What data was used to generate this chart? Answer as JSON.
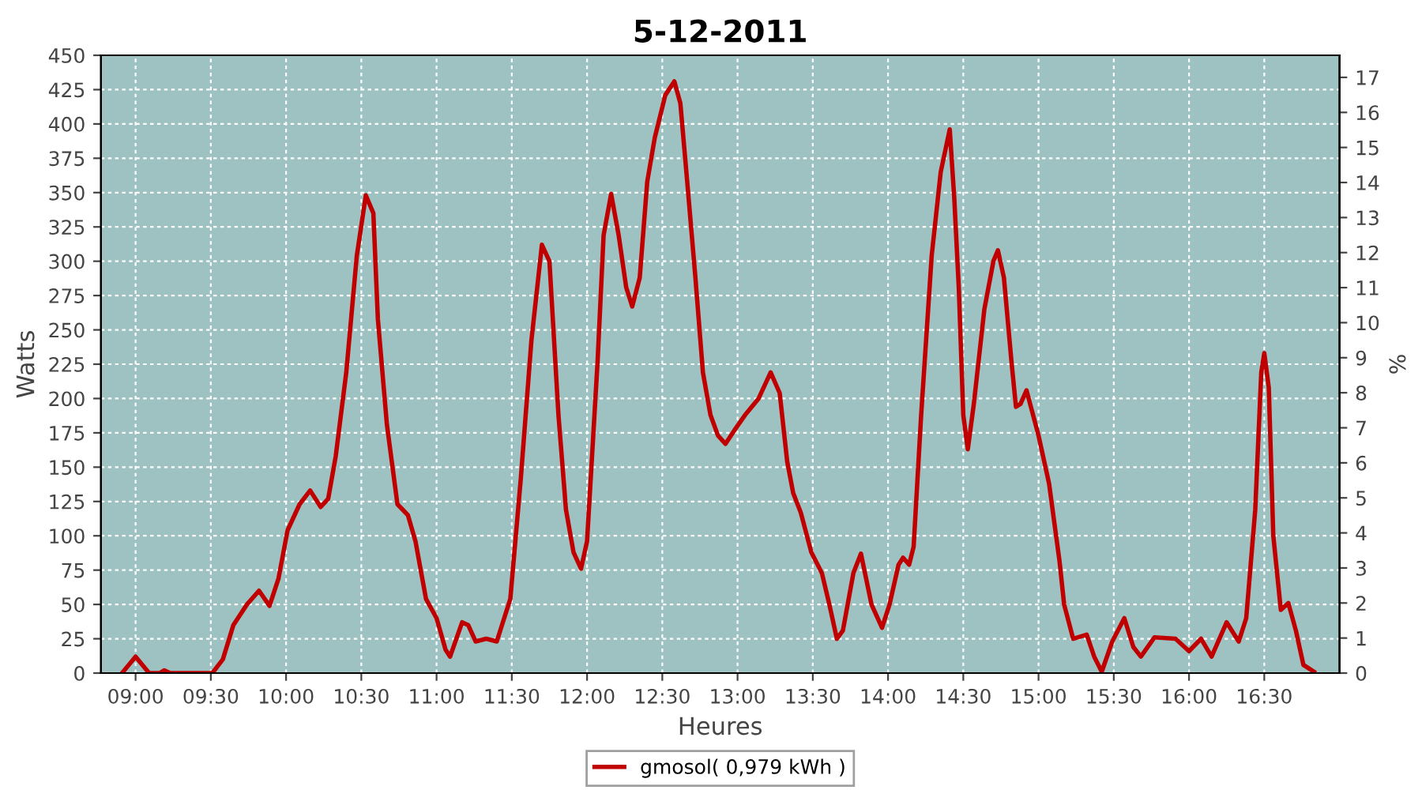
{
  "chart_data": {
    "type": "line",
    "title": "5-12-2011",
    "xlabel": "Heures",
    "ylabel": "Watts",
    "y2label": "%",
    "xlim": [
      8.77,
      17.0
    ],
    "ylim": [
      0,
      450
    ],
    "y2lim": [
      0,
      17.63
    ],
    "xticks": [
      {
        "value": 9,
        "label": "09:00"
      },
      {
        "value": 9.5,
        "label": "09:30"
      },
      {
        "value": 10,
        "label": "10:00"
      },
      {
        "value": 10.5,
        "label": "10:30"
      },
      {
        "value": 11,
        "label": "11:00"
      },
      {
        "value": 11.5,
        "label": "11:30"
      },
      {
        "value": 12,
        "label": "12:00"
      },
      {
        "value": 12.5,
        "label": "12:30"
      },
      {
        "value": 13,
        "label": "13:00"
      },
      {
        "value": 13.5,
        "label": "13:30"
      },
      {
        "value": 14,
        "label": "14:00"
      },
      {
        "value": 14.5,
        "label": "14:30"
      },
      {
        "value": 15,
        "label": "15:00"
      },
      {
        "value": 15.5,
        "label": "15:30"
      },
      {
        "value": 16,
        "label": "16:00"
      },
      {
        "value": 16.5,
        "label": "16:30"
      }
    ],
    "yticks": [
      0,
      25,
      50,
      75,
      100,
      125,
      150,
      175,
      200,
      225,
      250,
      275,
      300,
      325,
      350,
      375,
      400,
      425,
      450
    ],
    "y2ticks": [
      0,
      1,
      2,
      3,
      4,
      5,
      6,
      7,
      8,
      9,
      10,
      11,
      12,
      13,
      14,
      15,
      16,
      17
    ],
    "grid": true,
    "legend": "bottom",
    "marker": "none",
    "line_style": "solid",
    "series": [
      {
        "name": "gmosol( 0,979 kWh )",
        "color": "#c00000",
        "x": [
          8.91,
          9.0,
          9.09,
          9.16,
          9.19,
          9.23,
          9.51,
          9.58,
          9.65,
          9.74,
          9.82,
          9.89,
          9.95,
          10.01,
          10.09,
          10.16,
          10.23,
          10.28,
          10.33,
          10.4,
          10.47,
          10.53,
          10.58,
          10.61,
          10.67,
          10.74,
          10.81,
          10.86,
          10.93,
          11.0,
          11.06,
          11.09,
          11.17,
          11.21,
          11.26,
          11.33,
          11.4,
          11.49,
          11.56,
          11.63,
          11.7,
          11.75,
          11.81,
          11.86,
          11.91,
          11.96,
          12.0,
          12.07,
          12.11,
          12.16,
          12.21,
          12.26,
          12.3,
          12.35,
          12.4,
          12.45,
          12.52,
          12.58,
          12.62,
          12.66,
          12.72,
          12.77,
          12.82,
          12.87,
          12.92,
          12.98,
          13.05,
          13.14,
          13.22,
          13.28,
          13.33,
          13.37,
          13.42,
          13.49,
          13.56,
          13.61,
          13.66,
          13.7,
          13.77,
          13.82,
          13.89,
          13.96,
          14.01,
          14.07,
          14.1,
          14.14,
          14.17,
          14.22,
          14.29,
          14.35,
          14.41,
          14.44,
          14.47,
          14.5,
          14.53,
          14.57,
          14.64,
          14.7,
          14.73,
          14.77,
          14.82,
          14.85,
          14.88,
          14.92,
          15.0,
          15.07,
          15.14,
          15.17,
          15.23,
          15.32,
          15.37,
          15.42,
          15.49,
          15.57,
          15.63,
          15.68,
          15.77,
          15.91,
          16.0,
          16.08,
          16.15,
          16.25,
          16.33,
          16.38,
          16.44,
          16.48,
          16.5,
          16.53,
          16.56,
          16.61,
          16.66,
          16.71,
          16.76,
          16.83
        ],
        "values": [
          0,
          12,
          0,
          0,
          2,
          0,
          0,
          10,
          35,
          50,
          60,
          49,
          69,
          104,
          123,
          133,
          121,
          127,
          158,
          219,
          304,
          348,
          335,
          258,
          181,
          123,
          115,
          96,
          54,
          40,
          17,
          12,
          37,
          35,
          23,
          25,
          23,
          54,
          142,
          242,
          312,
          300,
          188,
          119,
          88,
          76,
          96,
          227,
          319,
          349,
          319,
          281,
          267,
          288,
          358,
          390,
          421,
          431,
          415,
          365,
          288,
          219,
          188,
          173,
          167,
          177,
          188,
          200,
          219,
          204,
          154,
          131,
          117,
          88,
          73,
          50,
          25,
          31,
          73,
          87,
          50,
          33,
          50,
          79,
          84,
          79,
          92,
          188,
          304,
          365,
          396,
          346,
          281,
          188,
          163,
          196,
          265,
          300,
          308,
          288,
          227,
          194,
          196,
          206,
          173,
          138,
          81,
          50,
          25,
          28,
          12,
          1,
          23,
          40,
          19,
          12,
          26,
          25,
          16,
          25,
          12,
          37,
          23,
          40,
          119,
          219,
          233,
          208,
          100,
          46,
          51,
          31,
          6,
          1
        ]
      }
    ]
  }
}
